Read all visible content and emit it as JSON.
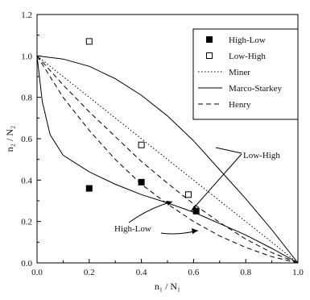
{
  "chart_data": {
    "type": "scatter",
    "xlim": [
      0.0,
      1.0
    ],
    "ylim": [
      0.0,
      1.2
    ],
    "x_ticks": [
      0.0,
      0.2,
      0.4,
      0.6,
      0.8,
      1.0
    ],
    "y_ticks": [
      0.0,
      0.2,
      0.4,
      0.6,
      0.8,
      1.0,
      1.2
    ],
    "x_tick_labels": [
      "0.0",
      "0.2",
      "0.4",
      "0.6",
      "0.8",
      "1.0"
    ],
    "y_tick_labels": [
      "0.0",
      "0.2",
      "0.4",
      "0.6",
      "0.8",
      "1.0",
      "1.2"
    ],
    "xlabel": "n₁ / N₁",
    "ylabel": "n₂ / N₂",
    "grid": false,
    "legend_position": "top-right",
    "series": [
      {
        "name": "High-Low",
        "kind": "points",
        "marker": "filled-square",
        "points": [
          [
            0.2,
            0.36
          ],
          [
            0.4,
            0.39
          ],
          [
            0.61,
            0.25
          ]
        ]
      },
      {
        "name": "Low-High",
        "kind": "points",
        "marker": "open-square",
        "points": [
          [
            0.2,
            1.07
          ],
          [
            0.4,
            0.57
          ],
          [
            0.58,
            0.33
          ]
        ]
      },
      {
        "name": "Miner",
        "kind": "line",
        "style": "dotted",
        "points": [
          [
            0.0,
            1.0
          ],
          [
            1.0,
            0.0
          ]
        ]
      },
      {
        "name": "Marco-Starkey",
        "kind": "curves",
        "style": "solid",
        "curves": [
          {
            "label": "Low-High",
            "points": [
              [
                0.0,
                1.0
              ],
              [
                0.1,
                0.985
              ],
              [
                0.2,
                0.95
              ],
              [
                0.3,
                0.89
              ],
              [
                0.4,
                0.81
              ],
              [
                0.5,
                0.71
              ],
              [
                0.6,
                0.59
              ],
              [
                0.7,
                0.45
              ],
              [
                0.8,
                0.31
              ],
              [
                0.9,
                0.16
              ],
              [
                1.0,
                0.0
              ]
            ]
          },
          {
            "label": "High-Low",
            "points": [
              [
                0.0,
                1.0
              ],
              [
                0.02,
                0.78
              ],
              [
                0.05,
                0.62
              ],
              [
                0.1,
                0.52
              ],
              [
                0.2,
                0.44
              ],
              [
                0.3,
                0.38
              ],
              [
                0.4,
                0.33
              ],
              [
                0.5,
                0.29
              ],
              [
                0.6,
                0.245
              ],
              [
                0.7,
                0.19
              ],
              [
                0.8,
                0.135
              ],
              [
                0.9,
                0.07
              ],
              [
                1.0,
                0.0
              ]
            ]
          }
        ]
      },
      {
        "name": "Henry",
        "kind": "curves",
        "style": "dashed",
        "curves": [
          {
            "label": "Low-High",
            "points": [
              [
                0.0,
                1.0
              ],
              [
                0.1,
                0.86
              ],
              [
                0.2,
                0.73
              ],
              [
                0.3,
                0.61
              ],
              [
                0.4,
                0.49
              ],
              [
                0.5,
                0.385
              ],
              [
                0.6,
                0.285
              ],
              [
                0.7,
                0.195
              ],
              [
                0.8,
                0.115
              ],
              [
                0.9,
                0.05
              ],
              [
                1.0,
                0.0
              ]
            ]
          },
          {
            "label": "High-Low",
            "points": [
              [
                0.0,
                1.0
              ],
              [
                0.1,
                0.8
              ],
              [
                0.2,
                0.64
              ],
              [
                0.3,
                0.5
              ],
              [
                0.4,
                0.38
              ],
              [
                0.5,
                0.285
              ],
              [
                0.6,
                0.2
              ],
              [
                0.7,
                0.13
              ],
              [
                0.8,
                0.075
              ],
              [
                0.9,
                0.03
              ],
              [
                1.0,
                0.0
              ]
            ]
          }
        ]
      }
    ],
    "annotations": [
      {
        "text": "Low-High",
        "anchor_data": [
          0.59,
          0.25
        ]
      },
      {
        "text": "High-Low",
        "anchor_data": [
          0.47,
          0.26
        ]
      }
    ]
  }
}
